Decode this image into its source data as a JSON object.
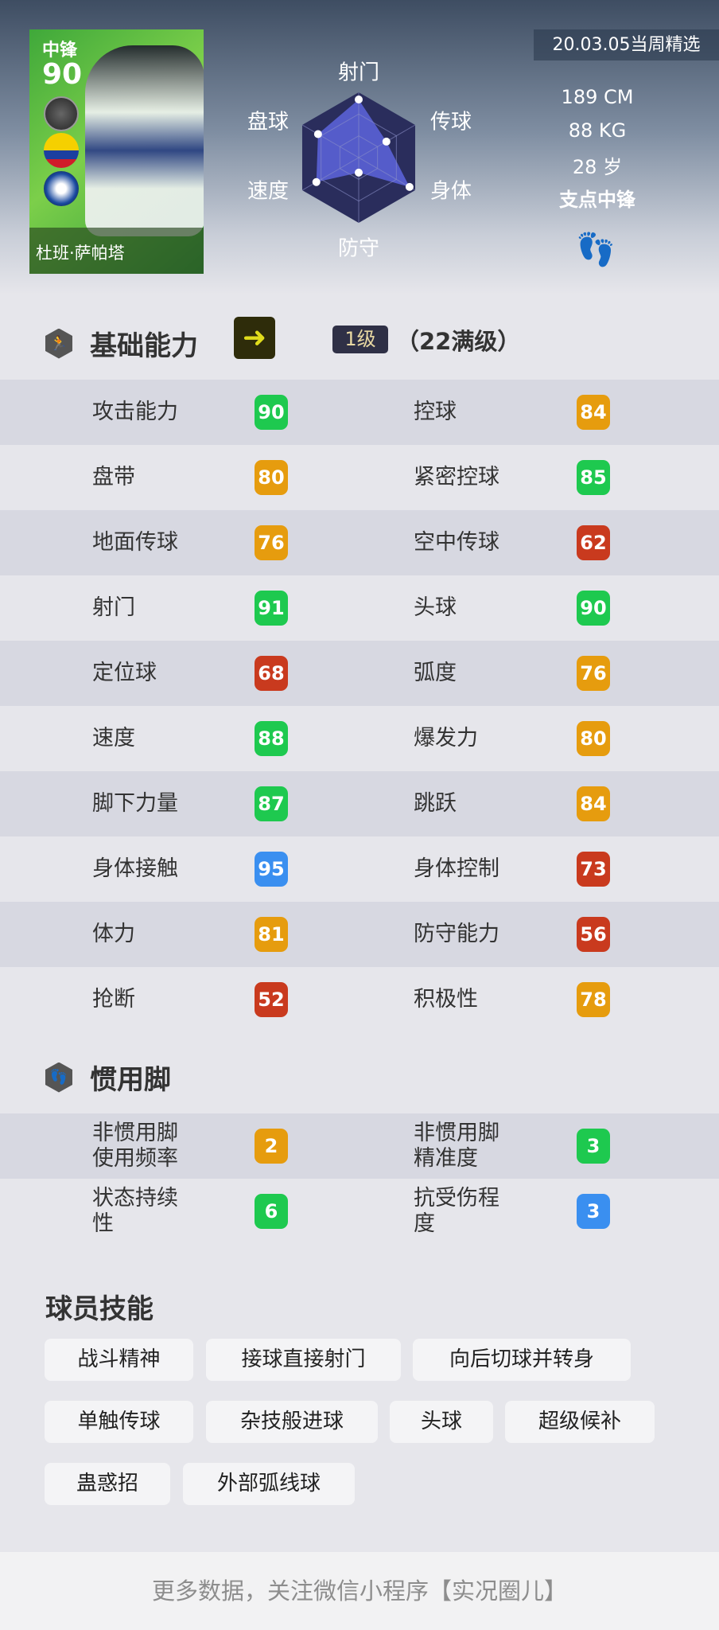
{
  "card": {
    "position": "中锋",
    "overall": "90",
    "name": "杜班·萨帕塔",
    "card_color": "#4caf3f"
  },
  "radar": {
    "labels": {
      "shooting": "射门",
      "passing": "传球",
      "physical": "身体",
      "defense": "防守",
      "speed": "速度",
      "dribbling": "盘球"
    },
    "values": {
      "shooting": 89,
      "passing": 49,
      "physical": 90,
      "defense": 23,
      "speed": 75,
      "dribbling": 72
    },
    "bg_color": "#2a2d5c",
    "fill_color": "#5a62d6"
  },
  "info": {
    "date_badge": "20.03.05当周精选",
    "height": "189 CM",
    "weight": "88 KG",
    "age": "28 岁",
    "playstyle": "支点中锋"
  },
  "basic": {
    "title": "基础能力",
    "level": "1级",
    "max_level": "（22满级）",
    "stats": [
      [
        "攻击能力",
        "90",
        "green",
        "控球",
        "84",
        "orange"
      ],
      [
        "盘带",
        "80",
        "orange",
        "紧密控球",
        "85",
        "green"
      ],
      [
        "地面传球",
        "76",
        "orange",
        "空中传球",
        "62",
        "red"
      ],
      [
        "射门",
        "91",
        "green",
        "头球",
        "90",
        "green"
      ],
      [
        "定位球",
        "68",
        "red",
        "弧度",
        "76",
        "orange"
      ],
      [
        "速度",
        "88",
        "green",
        "爆发力",
        "80",
        "orange"
      ],
      [
        "脚下力量",
        "87",
        "green",
        "跳跃",
        "84",
        "orange"
      ],
      [
        "身体接触",
        "95",
        "blue",
        "身体控制",
        "73",
        "red"
      ],
      [
        "体力",
        "81",
        "orange",
        "防守能力",
        "56",
        "red"
      ],
      [
        "抢断",
        "52",
        "red",
        "积极性",
        "78",
        "orange"
      ]
    ]
  },
  "foot": {
    "title": "惯用脚",
    "stats": [
      [
        "非惯用脚\n使用频率",
        "2",
        "orange",
        "非惯用脚\n精准度",
        "3",
        "green"
      ],
      [
        "状态持续\n性",
        "6",
        "green",
        "抗受伤程\n度",
        "3",
        "blue"
      ]
    ]
  },
  "skills": {
    "title": "球员技能",
    "items": [
      "战斗精神",
      "接球直接射门",
      "向后切球并转身",
      "单触传球",
      "杂技般进球",
      "头球",
      "超级候补",
      "蛊惑招",
      "外部弧线球"
    ]
  },
  "colors": {
    "green": "#1ec94f",
    "orange": "#e69c0e",
    "red": "#c93a1e",
    "blue": "#3a8ff0"
  },
  "footer": "更多数据，关注微信小程序【实况圈儿】"
}
